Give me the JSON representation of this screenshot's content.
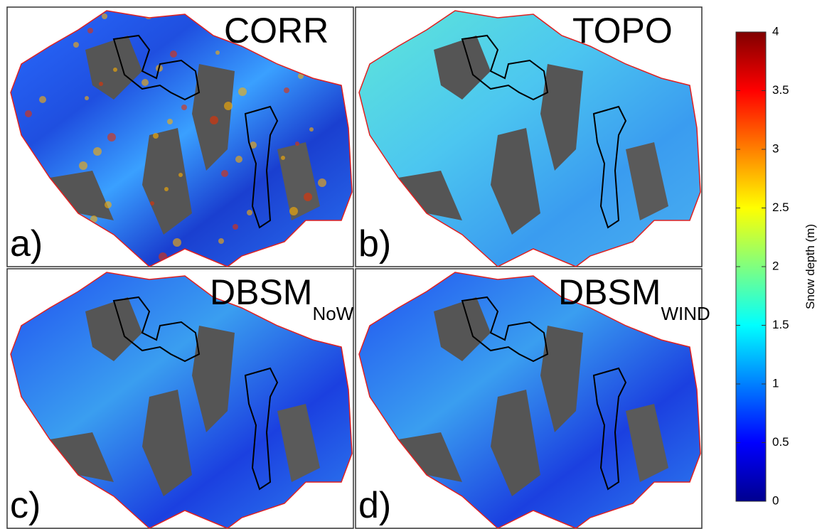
{
  "panels": [
    {
      "title": "CORR",
      "label": "a)"
    },
    {
      "title": "TOPO",
      "label": "b)"
    },
    {
      "title": "DBSM",
      "subscript": "NoWIND",
      "label": "c)"
    },
    {
      "title": "DBSM",
      "subscript": "WIND",
      "label": "d)"
    }
  ],
  "colorbar": {
    "label": "Snow depth (m)",
    "lim": [
      0,
      4
    ],
    "ticks": [
      0,
      0.5,
      1,
      1.5,
      2,
      2.5,
      3,
      3.5,
      4
    ]
  }
}
